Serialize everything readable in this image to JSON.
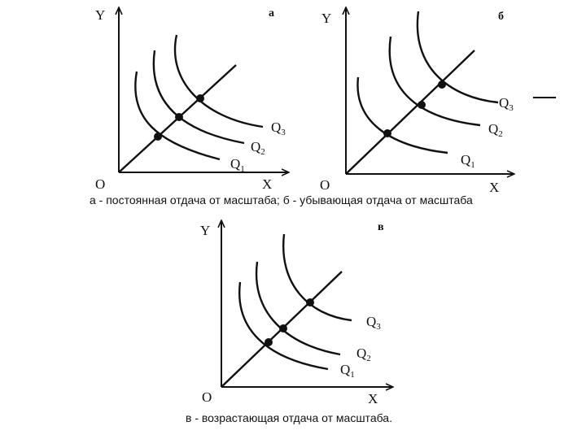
{
  "panels": [
    {
      "id": "a",
      "letter": "а",
      "axis_y": "Y",
      "axis_x": "X",
      "origin": "O",
      "curves": [
        {
          "base": "Q",
          "sub": "1"
        },
        {
          "base": "Q",
          "sub": "2"
        },
        {
          "base": "Q",
          "sub": "3"
        }
      ]
    },
    {
      "id": "b",
      "letter": "б",
      "axis_y": "Y",
      "axis_x": "X",
      "origin": "O",
      "curves": [
        {
          "base": "Q",
          "sub": "1"
        },
        {
          "base": "Q",
          "sub": "2"
        },
        {
          "base": "Q",
          "sub": "3"
        }
      ]
    },
    {
      "id": "c",
      "letter": "в",
      "axis_y": "Y",
      "axis_x": "X",
      "origin": "O",
      "curves": [
        {
          "base": "Q",
          "sub": "1"
        },
        {
          "base": "Q",
          "sub": "2"
        },
        {
          "base": "Q",
          "sub": "3"
        }
      ]
    }
  ],
  "captions": {
    "top": "а - постоянная отдача от масштаба; б - убывающая отдача от масштаба",
    "bottom": "в - возрастающая отдача от масштаба."
  }
}
